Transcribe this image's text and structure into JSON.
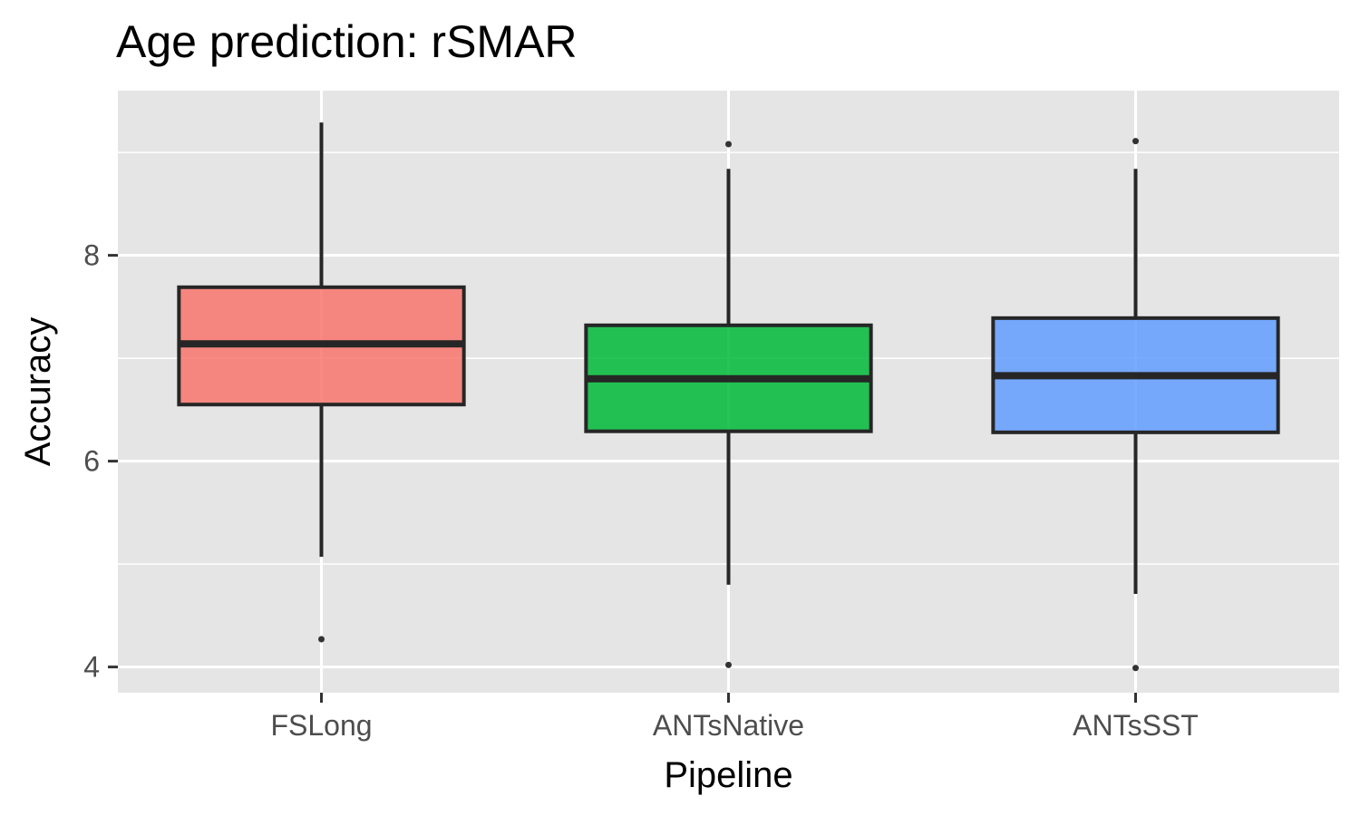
{
  "chart_data": {
    "type": "boxplot",
    "title": "Age prediction: rSMAR",
    "xlabel": "Pipeline",
    "ylabel": "Accuracy",
    "ylim": [
      3.75,
      9.6
    ],
    "yticks": [
      4,
      6,
      8
    ],
    "grid": true,
    "legend": "none",
    "categories": [
      "FSLong",
      "ANTsNative",
      "ANTsSST"
    ],
    "boxes": [
      {
        "category": "FSLong",
        "whisker_low": 5.07,
        "q1": 6.55,
        "median": 7.14,
        "q3": 7.69,
        "whisker_high": 9.29,
        "outliers": [
          4.27
        ],
        "color": "#F8766D"
      },
      {
        "category": "ANTsNative",
        "whisker_low": 4.8,
        "q1": 6.29,
        "median": 6.8,
        "q3": 7.32,
        "whisker_high": 8.84,
        "outliers": [
          4.02,
          9.08
        ],
        "color": "#00BA38"
      },
      {
        "category": "ANTsSST",
        "whisker_low": 4.71,
        "q1": 6.28,
        "median": 6.83,
        "q3": 7.39,
        "whisker_high": 8.84,
        "outliers": [
          3.99,
          9.11
        ],
        "color": "#619CFF"
      }
    ]
  },
  "style": {
    "panel_background": "#E5E5E5",
    "grid_color": "#FFFFFF",
    "box_outline": "#262626",
    "point_color": "#333333"
  }
}
